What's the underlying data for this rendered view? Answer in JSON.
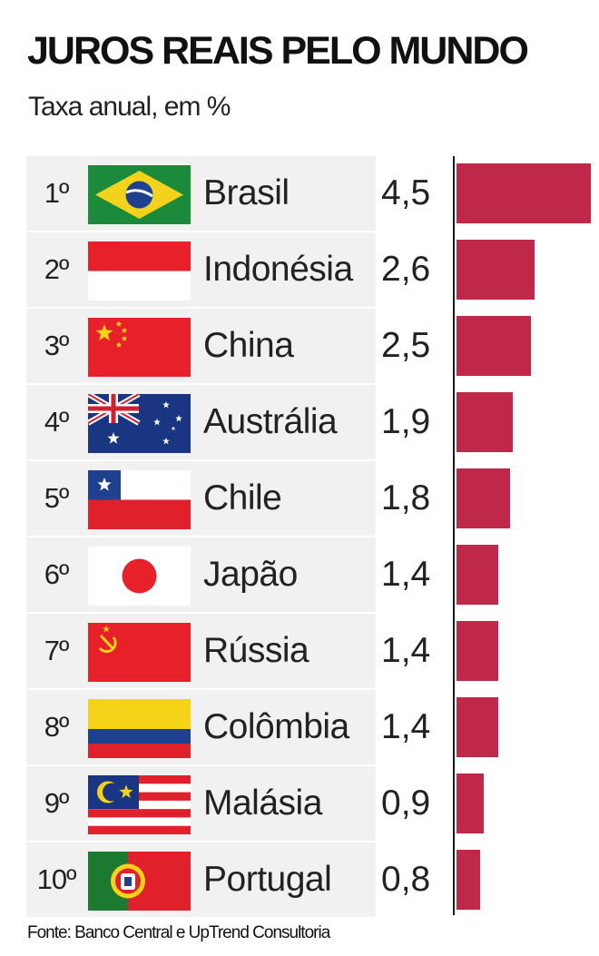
{
  "chart_data": {
    "type": "bar",
    "orientation": "horizontal",
    "title": "JUROS REAIS PELO MUNDO",
    "subtitle": "Taxa anual, em %",
    "source": "Fonte: Banco Central e UpTrend Consultoria",
    "xlim": [
      0,
      4.5
    ],
    "grid": false,
    "legend": "none",
    "bar_color": "#c0284a",
    "rows": [
      {
        "rank": "1º",
        "country": "Brasil",
        "label": "4,5",
        "value": 4.5,
        "flag": "brazil-flag-icon"
      },
      {
        "rank": "2º",
        "country": "Indonésia",
        "label": "2,6",
        "value": 2.6,
        "flag": "indonesia-flag-icon"
      },
      {
        "rank": "3º",
        "country": "China",
        "label": "2,5",
        "value": 2.5,
        "flag": "china-flag-icon"
      },
      {
        "rank": "4º",
        "country": "Austrália",
        "label": "1,9",
        "value": 1.9,
        "flag": "australia-flag-icon"
      },
      {
        "rank": "5º",
        "country": "Chile",
        "label": "1,8",
        "value": 1.8,
        "flag": "chile-flag-icon"
      },
      {
        "rank": "6º",
        "country": "Japão",
        "label": "1,4",
        "value": 1.4,
        "flag": "japan-flag-icon"
      },
      {
        "rank": "7º",
        "country": "Rússia",
        "label": "1,4",
        "value": 1.4,
        "flag": "ussr-flag-icon"
      },
      {
        "rank": "8º",
        "country": "Colômbia",
        "label": "1,4",
        "value": 1.4,
        "flag": "colombia-flag-icon"
      },
      {
        "rank": "9º",
        "country": "Malásia",
        "label": "0,9",
        "value": 0.9,
        "flag": "malaysia-flag-icon"
      },
      {
        "rank": "10º",
        "country": "Portugal",
        "label": "0,8",
        "value": 0.8,
        "flag": "portugal-flag-icon"
      }
    ]
  }
}
